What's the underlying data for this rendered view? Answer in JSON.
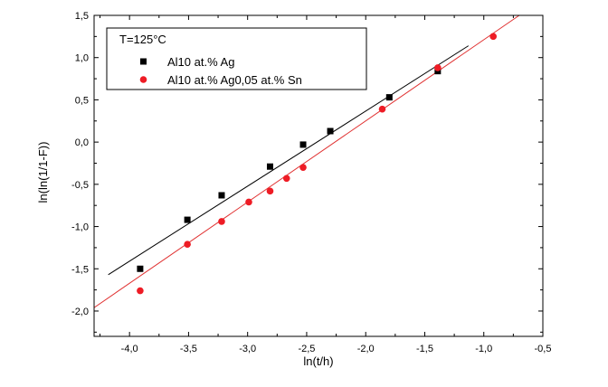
{
  "chart_data": {
    "type": "scatter",
    "title": "",
    "xlabel": "ln(t/h)",
    "ylabel": "ln(ln(1/1-F))",
    "xlim": [
      -4.3,
      -0.5
    ],
    "ylim": [
      -2.3,
      1.5
    ],
    "x_ticks": [
      -4.0,
      -3.5,
      -3.0,
      -2.5,
      -2.0,
      -1.5,
      -1.0,
      -0.5
    ],
    "x_tick_labels": [
      "-4,0",
      "-3,5",
      "-3,0",
      "-2,5",
      "-2,0",
      "-1,5",
      "-1,0",
      "-0,5"
    ],
    "y_ticks": [
      -2.0,
      -1.5,
      -1.0,
      -0.5,
      0.0,
      0.5,
      1.0,
      1.5
    ],
    "y_tick_labels": [
      "-2,0",
      "-1,5",
      "-1,0",
      "-0,5",
      "0,0",
      "0,5",
      "1,0",
      "1,5"
    ],
    "legend_title": "T=125°C",
    "legend_position": "top-left",
    "series": [
      {
        "name": "Al10 at.% Ag",
        "marker": "square",
        "color": "#000000",
        "fit_color": "#000000",
        "points": [
          [
            -3.91,
            -1.5
          ],
          [
            -3.51,
            -0.92
          ],
          [
            -3.22,
            -0.63
          ],
          [
            -2.81,
            -0.29
          ],
          [
            -2.53,
            -0.03
          ],
          [
            -2.3,
            0.13
          ],
          [
            -1.8,
            0.53
          ],
          [
            -1.39,
            0.84
          ]
        ],
        "fit": [
          [
            -4.18,
            -1.57
          ],
          [
            -1.13,
            1.14
          ]
        ]
      },
      {
        "name": "Al10 at.% Ag0,05 at.% Sn",
        "marker": "circle",
        "color": "#ee1c25",
        "fit_color": "#e03030",
        "points": [
          [
            -3.91,
            -1.76
          ],
          [
            -3.51,
            -1.21
          ],
          [
            -3.22,
            -0.94
          ],
          [
            -2.99,
            -0.71
          ],
          [
            -2.81,
            -0.58
          ],
          [
            -2.67,
            -0.43
          ],
          [
            -2.53,
            -0.3
          ],
          [
            -1.86,
            0.39
          ],
          [
            -1.39,
            0.88
          ],
          [
            -0.92,
            1.25
          ]
        ],
        "fit": [
          [
            -4.3,
            -1.96
          ],
          [
            -0.7,
            1.5
          ]
        ]
      }
    ]
  }
}
